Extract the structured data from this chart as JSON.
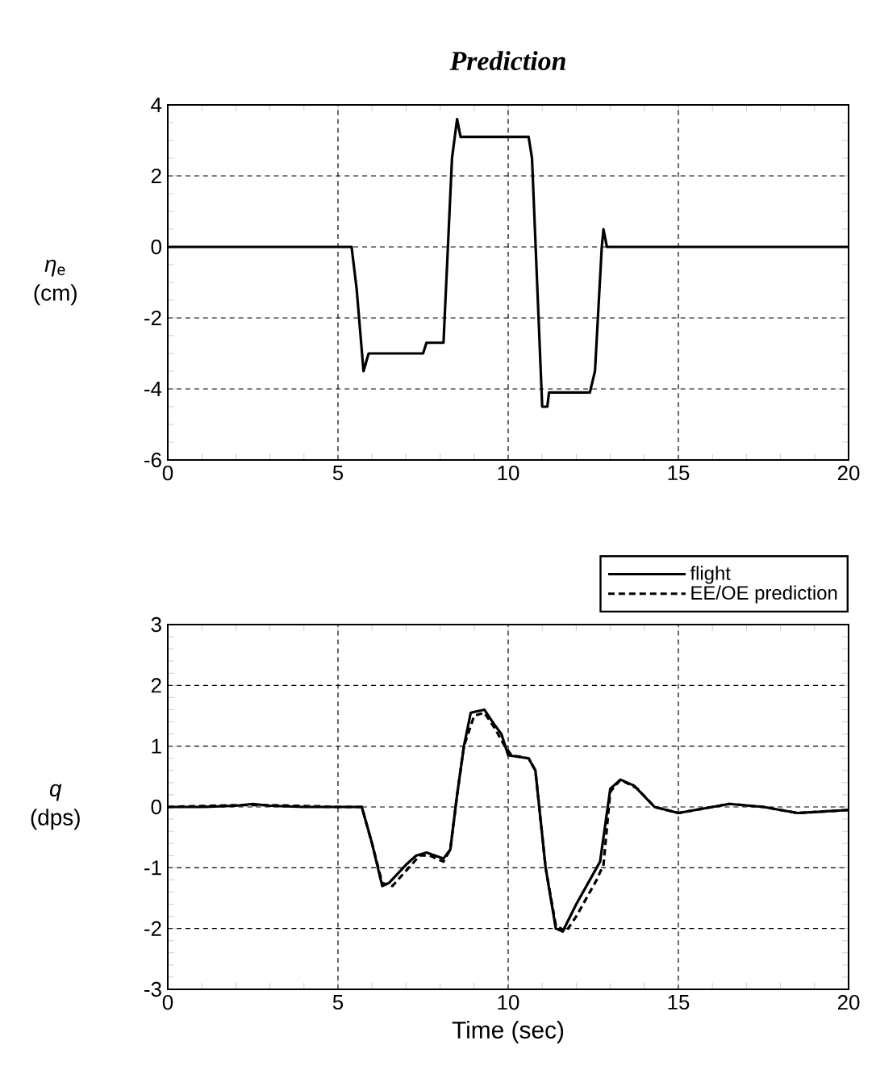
{
  "chart_data": [
    {
      "type": "line",
      "title": "Prediction",
      "ylabel": "*η*$_{e}$ (cm)",
      "xlim": [
        0,
        20
      ],
      "ylim": [
        -6,
        4
      ],
      "xticks": [
        0,
        5,
        10,
        15,
        20
      ],
      "yticks": [
        -6,
        -4,
        -2,
        0,
        2,
        4
      ],
      "grid": true,
      "series": [
        {
          "color": "#000000",
          "line_style": "solid",
          "x": [
            0,
            5.4,
            5.55,
            5.75,
            5.9,
            7.5,
            7.6,
            8.1,
            8.35,
            8.5,
            8.6,
            10.6,
            10.7,
            11.0,
            11.15,
            11.2,
            12.4,
            12.55,
            12.75,
            12.8,
            12.9,
            20
          ],
          "values": [
            0,
            0,
            -1.2,
            -3.5,
            -3.0,
            -3.0,
            -2.7,
            -2.7,
            2.5,
            3.6,
            3.1,
            3.1,
            2.5,
            -4.5,
            -4.5,
            -4.1,
            -4.1,
            -3.5,
            0,
            0.5,
            0,
            0
          ]
        }
      ]
    },
    {
      "type": "line",
      "xlabel": "Time  (sec)",
      "ylabel": "*q* (dps)",
      "xlim": [
        0,
        20
      ],
      "ylim": [
        -3,
        3
      ],
      "xticks": [
        0,
        5,
        10,
        15,
        20
      ],
      "yticks": [
        -3,
        -2,
        -1,
        0,
        1,
        2,
        3
      ],
      "grid": true,
      "legend": "top right",
      "series": [
        {
          "name": "flight",
          "color": "#000000",
          "line_style": "solid",
          "x": [
            0,
            1,
            2,
            2.5,
            3,
            4,
            5,
            5.7,
            6.0,
            6.3,
            6.5,
            7.0,
            7.3,
            7.6,
            8.1,
            8.3,
            8.5,
            8.7,
            8.9,
            9.3,
            9.6,
            9.8,
            10.0,
            10.6,
            10.8,
            11.1,
            11.4,
            11.6,
            12.0,
            12.5,
            12.7,
            13.0,
            13.3,
            13.7,
            14.3,
            15.0,
            16.0,
            16.5,
            17.5,
            18.5,
            20
          ],
          "values": [
            0,
            0,
            0.02,
            0.05,
            0.02,
            0,
            0,
            0,
            -0.6,
            -1.3,
            -1.25,
            -0.95,
            -0.8,
            -0.75,
            -0.85,
            -0.7,
            0.2,
            1.0,
            1.55,
            1.6,
            1.35,
            1.2,
            0.85,
            0.8,
            0.6,
            -1.0,
            -2.0,
            -2.05,
            -1.6,
            -1.1,
            -0.9,
            0.3,
            0.45,
            0.35,
            0.0,
            -0.1,
            0.0,
            0.05,
            0,
            -0.1,
            -0.05
          ]
        },
        {
          "name": "EE/OE prediction",
          "color": "#000000",
          "line_style": "dashed",
          "x": [
            0,
            2,
            3,
            5,
            5.7,
            6.0,
            6.3,
            6.6,
            7.0,
            7.4,
            7.7,
            8.1,
            8.3,
            8.5,
            8.7,
            9.0,
            9.3,
            9.6,
            9.9,
            10.1,
            10.6,
            10.8,
            11.1,
            11.4,
            11.7,
            12.0,
            12.6,
            12.8,
            13.0,
            13.3,
            13.8,
            14.3,
            15.0,
            16.0,
            16.5,
            17.5,
            18.5,
            20
          ],
          "values": [
            0,
            0.03,
            0.03,
            0,
            0,
            -0.6,
            -1.25,
            -1.3,
            -1.05,
            -0.8,
            -0.8,
            -0.9,
            -0.7,
            0.2,
            1.0,
            1.5,
            1.55,
            1.3,
            1.0,
            0.85,
            0.8,
            0.6,
            -1.0,
            -1.95,
            -2.05,
            -1.8,
            -1.2,
            -0.95,
            0.25,
            0.45,
            0.3,
            0.0,
            -0.1,
            0.0,
            0.05,
            0,
            -0.1,
            -0.05
          ]
        }
      ]
    }
  ]
}
